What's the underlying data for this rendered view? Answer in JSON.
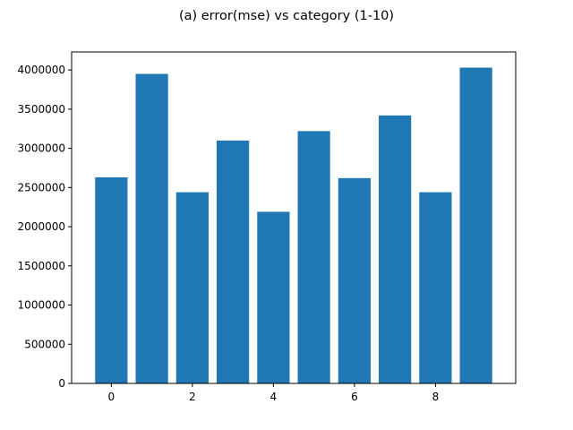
{
  "chart_data": {
    "type": "bar",
    "title": "(a) error(mse) vs category (1-10)",
    "xlabel": "",
    "ylabel": "",
    "x": [
      0,
      1,
      2,
      3,
      4,
      5,
      6,
      7,
      8,
      9
    ],
    "values": [
      2630000,
      3950000,
      2440000,
      3100000,
      2190000,
      3220000,
      2620000,
      3420000,
      2440000,
      4030000
    ],
    "xlim": [
      -0.98,
      9.98
    ],
    "ylim": [
      0,
      4230000
    ],
    "xticks": [
      0,
      2,
      4,
      6,
      8
    ],
    "xtick_labels": [
      "0",
      "2",
      "4",
      "6",
      "8"
    ],
    "yticks": [
      0,
      500000,
      1000000,
      1500000,
      2000000,
      2500000,
      3000000,
      3500000,
      4000000
    ],
    "ytick_labels": [
      "0",
      "500000",
      "1000000",
      "1500000",
      "2000000",
      "2500000",
      "3000000",
      "3500000",
      "4000000"
    ],
    "bar_color": "#1f77b4",
    "grid": false,
    "legend": "none"
  }
}
